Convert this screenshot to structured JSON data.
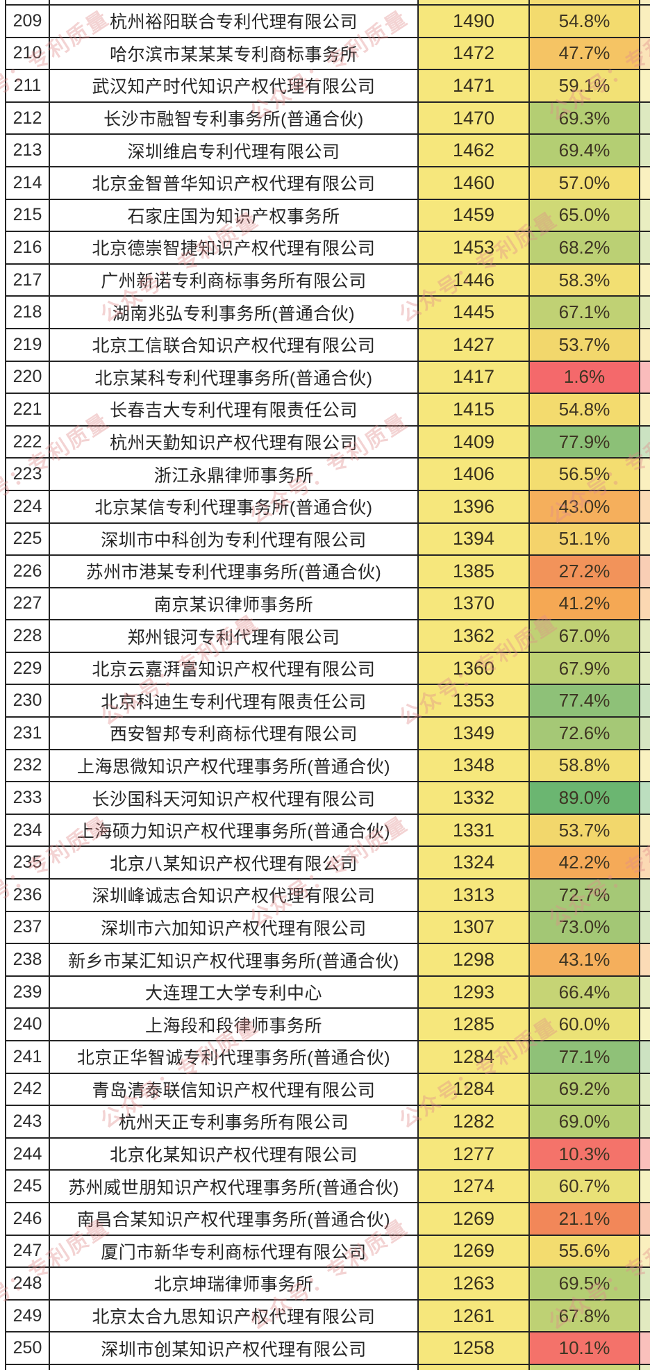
{
  "watermark": {
    "text": "公众号：专利质量"
  },
  "colors": {
    "border": "#242424",
    "count_bg": "#F6E77C",
    "top_sliver": {
      "rank": "#ffffff",
      "name": "#ffffff",
      "count": "#F8E985",
      "pct": "#F4DC72"
    },
    "bottom_sliver": {
      "rank": "#ffffff",
      "name": "#ffffff",
      "count": "#F6E77C",
      "pct": "#CBD879"
    }
  },
  "table": {
    "rows": [
      {
        "rank": "209",
        "name": "杭州裕阳联合专利代理有限公司",
        "count": "1490",
        "pct": "54.8%",
        "pct_color": "#F3DB6E"
      },
      {
        "rank": "210",
        "name": "哈尔滨市某某某专利商标事务所",
        "count": "1472",
        "pct": "47.7%",
        "pct_color": "#F5C464"
      },
      {
        "rank": "211",
        "name": "武汉知产时代知识产权代理有限公司",
        "count": "1471",
        "pct": "59.1%",
        "pct_color": "#F2E175"
      },
      {
        "rank": "212",
        "name": "长沙市融智专利事务所(普通合伙)",
        "count": "1470",
        "pct": "69.3%",
        "pct_color": "#B4CE73"
      },
      {
        "rank": "213",
        "name": "深圳维启专利代理有限公司",
        "count": "1462",
        "pct": "69.4%",
        "pct_color": "#B4CE73"
      },
      {
        "rank": "214",
        "name": "北京金智普华知识产权代理有限公司",
        "count": "1460",
        "pct": "57.0%",
        "pct_color": "#F3DF72"
      },
      {
        "rank": "215",
        "name": "石家庄国为知识产权事务所",
        "count": "1459",
        "pct": "65.0%",
        "pct_color": "#CFD976"
      },
      {
        "rank": "216",
        "name": "北京德崇智捷知识产权代理有限公司",
        "count": "1453",
        "pct": "68.2%",
        "pct_color": "#BBD074"
      },
      {
        "rank": "217",
        "name": "广州新诺专利商标事务所有限公司",
        "count": "1446",
        "pct": "58.3%",
        "pct_color": "#F2DF72"
      },
      {
        "rank": "218",
        "name": "湖南兆弘专利事务所(普通合伙)",
        "count": "1445",
        "pct": "67.1%",
        "pct_color": "#C0D174"
      },
      {
        "rank": "219",
        "name": "北京工信联合知识产权代理有限公司",
        "count": "1427",
        "pct": "53.7%",
        "pct_color": "#F2D76C"
      },
      {
        "rank": "220",
        "name": "北京某科专利代理事务所(普通合伙)",
        "count": "1417",
        "pct": "1.6%",
        "pct_color": "#F4696B"
      },
      {
        "rank": "221",
        "name": "长春吉大专利代理有限责任公司",
        "count": "1415",
        "pct": "54.8%",
        "pct_color": "#F3DB6E"
      },
      {
        "rank": "222",
        "name": "杭州天勤知识产权代理有限公司",
        "count": "1409",
        "pct": "77.9%",
        "pct_color": "#8CC077"
      },
      {
        "rank": "223",
        "name": "浙江永鼎律师事务所",
        "count": "1406",
        "pct": "56.5%",
        "pct_color": "#F3DD70"
      },
      {
        "rank": "224",
        "name": "北京某信专利代理事务所(普通合伙)",
        "count": "1396",
        "pct": "43.0%",
        "pct_color": "#F5AF5C"
      },
      {
        "rank": "225",
        "name": "深圳市中科创为专利代理有限公司",
        "count": "1394",
        "pct": "51.1%",
        "pct_color": "#F4D36B"
      },
      {
        "rank": "226",
        "name": "苏州市港某专利代理事务所(普通合伙)",
        "count": "1385",
        "pct": "27.2%",
        "pct_color": "#F2935A"
      },
      {
        "rank": "227",
        "name": "南京某识律师事务所",
        "count": "1370",
        "pct": "41.2%",
        "pct_color": "#F5A854"
      },
      {
        "rank": "228",
        "name": "郑州银河专利代理有限公司",
        "count": "1362",
        "pct": "67.0%",
        "pct_color": "#C0D174"
      },
      {
        "rank": "229",
        "name": "北京云嘉湃富知识产权代理有限公司",
        "count": "1360",
        "pct": "67.9%",
        "pct_color": "#BDD174"
      },
      {
        "rank": "230",
        "name": "北京科迪生专利代理有限责任公司",
        "count": "1353",
        "pct": "77.4%",
        "pct_color": "#8EC178"
      },
      {
        "rank": "231",
        "name": "西安智邦专利商标代理有限公司",
        "count": "1349",
        "pct": "72.6%",
        "pct_color": "#A5C876"
      },
      {
        "rank": "232",
        "name": "上海思微知识产权代理事务所(普通合伙)",
        "count": "1348",
        "pct": "58.8%",
        "pct_color": "#F2E074"
      },
      {
        "rank": "233",
        "name": "长沙国科天河知识产权代理有限公司",
        "count": "1332",
        "pct": "89.0%",
        "pct_color": "#6BB671"
      },
      {
        "rank": "234",
        "name": "上海硕力知识产权代理事务所(普通合伙)",
        "count": "1331",
        "pct": "53.7%",
        "pct_color": "#F2D76C"
      },
      {
        "rank": "235",
        "name": "北京八某知识产权代理有限公司",
        "count": "1324",
        "pct": "42.2%",
        "pct_color": "#F5AA58"
      },
      {
        "rank": "236",
        "name": "深圳峰诚志合知识产权代理有限公司",
        "count": "1313",
        "pct": "72.7%",
        "pct_color": "#A5C876"
      },
      {
        "rank": "237",
        "name": "深圳市六加知识产权代理有限公司",
        "count": "1307",
        "pct": "73.0%",
        "pct_color": "#A3C775"
      },
      {
        "rank": "238",
        "name": "新乡市某汇知识产权代理事务所(普通合伙)",
        "count": "1298",
        "pct": "43.1%",
        "pct_color": "#F5AF5C"
      },
      {
        "rank": "239",
        "name": "大连理工大学专利中心",
        "count": "1293",
        "pct": "66.4%",
        "pct_color": "#C6D475"
      },
      {
        "rank": "240",
        "name": "上海段和段律师事务所",
        "count": "1285",
        "pct": "60.0%",
        "pct_color": "#EBE277"
      },
      {
        "rank": "241",
        "name": "北京正华智诚专利代理事务所(普通合伙)",
        "count": "1284",
        "pct": "77.1%",
        "pct_color": "#8FC178"
      },
      {
        "rank": "242",
        "name": "青岛清泰联信知识产权代理有限公司",
        "count": "1284",
        "pct": "69.2%",
        "pct_color": "#B5CE73"
      },
      {
        "rank": "243",
        "name": "杭州天正专利事务所有限公司",
        "count": "1282",
        "pct": "69.0%",
        "pct_color": "#B6CF73"
      },
      {
        "rank": "244",
        "name": "北京化某知识产权代理有限公司",
        "count": "1277",
        "pct": "10.3%",
        "pct_color": "#F4736A"
      },
      {
        "rank": "245",
        "name": "苏州威世朋知识产权代理事务所(普通合伙)",
        "count": "1274",
        "pct": "60.7%",
        "pct_color": "#E9E177"
      },
      {
        "rank": "246",
        "name": "南昌合某知识产权代理事务所(普通合伙)",
        "count": "1269",
        "pct": "21.1%",
        "pct_color": "#F28759"
      },
      {
        "rank": "247",
        "name": "厦门市新华专利商标代理有限公司",
        "count": "1269",
        "pct": "55.6%",
        "pct_color": "#F3DC6F"
      },
      {
        "rank": "248",
        "name": "北京坤瑞律师事务所",
        "count": "1263",
        "pct": "69.5%",
        "pct_color": "#B4CE73"
      },
      {
        "rank": "249",
        "name": "北京太合九思知识产权代理有限公司",
        "count": "1261",
        "pct": "67.8%",
        "pct_color": "#BED174"
      },
      {
        "rank": "250",
        "name": "深圳市创某知识产权代理有限公司",
        "count": "1258",
        "pct": "10.1%",
        "pct_color": "#F4726A"
      }
    ]
  }
}
